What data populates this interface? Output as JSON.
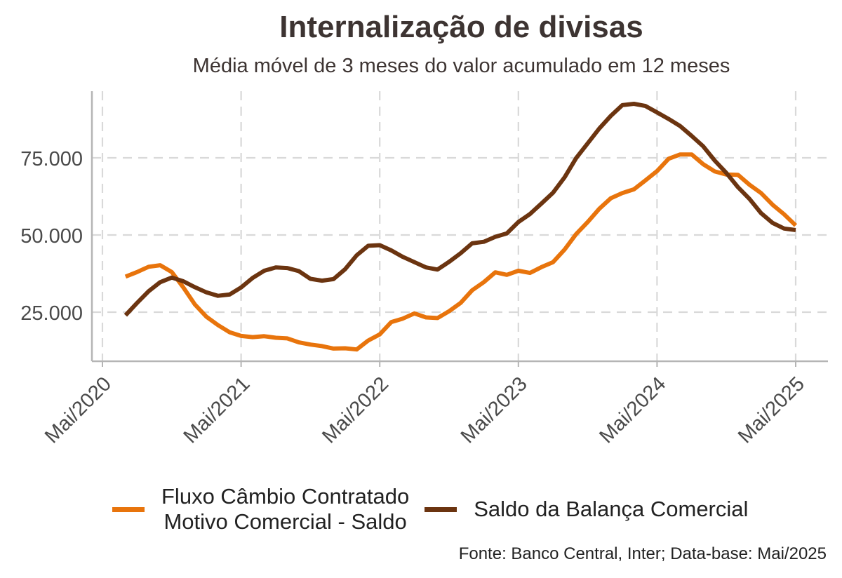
{
  "header": {
    "title": "Internalização de divisas",
    "subtitle": "Média móvel de 3 meses do valor acumulado em 12 meses"
  },
  "source": "Fonte: Banco Central, Inter; Data-base: Mai/2025",
  "legend": {
    "fluxo_line1": "Fluxo Câmbio Contratado",
    "fluxo_line2": "Motivo Comercial - Saldo",
    "saldo": "Saldo da Balança Comercial"
  },
  "colors": {
    "fluxo": "#E8740C",
    "saldo": "#6B3410",
    "grid": "#d9d9d9",
    "axis": "#b5b5b5"
  },
  "chart_data": {
    "type": "line",
    "title": "Internalização de divisas",
    "subtitle": "Média móvel de 3 meses do valor acumulado em 12 meses",
    "xlabel": "",
    "ylabel": "",
    "x_ticks": [
      "Mai/2020",
      "Mai/2021",
      "Mai/2022",
      "Mai/2023",
      "Mai/2024",
      "Mai/2025"
    ],
    "y_ticks": [
      "25.000",
      "50.000",
      "75.000"
    ],
    "y_tick_values": [
      25000,
      50000,
      75000
    ],
    "ylim": [
      9000,
      95000
    ],
    "xlim": [
      "2020-04",
      "2025-06"
    ],
    "grid": true,
    "legend_position": "bottom",
    "dates": [
      "2020-07",
      "2020-08",
      "2020-09",
      "2020-10",
      "2020-11",
      "2020-12",
      "2021-01",
      "2021-02",
      "2021-03",
      "2021-04",
      "2021-05",
      "2021-06",
      "2021-07",
      "2021-08",
      "2021-09",
      "2021-10",
      "2021-11",
      "2021-12",
      "2022-01",
      "2022-02",
      "2022-03",
      "2022-04",
      "2022-05",
      "2022-06",
      "2022-07",
      "2022-08",
      "2022-09",
      "2022-10",
      "2022-11",
      "2022-12",
      "2023-01",
      "2023-02",
      "2023-03",
      "2023-04",
      "2023-05",
      "2023-06",
      "2023-07",
      "2023-08",
      "2023-09",
      "2023-10",
      "2023-11",
      "2023-12",
      "2024-01",
      "2024-02",
      "2024-03",
      "2024-04",
      "2024-05",
      "2024-06",
      "2024-07",
      "2024-08",
      "2024-09",
      "2024-10",
      "2024-11",
      "2024-12",
      "2025-01",
      "2025-02",
      "2025-03",
      "2025-04",
      "2025-05"
    ],
    "series": [
      {
        "name": "Fluxo Câmbio Contratado Motivo Comercial - Saldo",
        "color": "#E8740C",
        "values": [
          36500,
          38000,
          39700,
          40200,
          38000,
          33000,
          27500,
          23500,
          20800,
          18500,
          17300,
          16900,
          17200,
          16700,
          16500,
          15200,
          14500,
          14000,
          13200,
          13300,
          12900,
          15800,
          17800,
          21800,
          22900,
          24600,
          23300,
          23100,
          25300,
          28000,
          32100,
          34700,
          37900,
          37100,
          38400,
          37700,
          39600,
          41200,
          45300,
          50300,
          54200,
          58500,
          61900,
          63600,
          64800,
          67700,
          70700,
          74700,
          76100,
          76100,
          72900,
          70600,
          69600,
          69500,
          66300,
          63600,
          59800,
          56700,
          53100
        ]
      },
      {
        "name": "Saldo da Balança Comercial",
        "color": "#6B3410",
        "values": [
          24000,
          28000,
          31800,
          34700,
          36200,
          35000,
          33100,
          31400,
          30300,
          30700,
          33000,
          36100,
          38400,
          39500,
          39300,
          38300,
          35800,
          35200,
          35700,
          38900,
          43400,
          46500,
          46700,
          45000,
          42900,
          41200,
          39500,
          38800,
          41300,
          44100,
          47300,
          47800,
          49400,
          50500,
          54200,
          56800,
          60200,
          63700,
          68700,
          74900,
          79700,
          84500,
          88600,
          92100,
          92500,
          91800,
          89700,
          87600,
          85300,
          82100,
          78700,
          74100,
          70100,
          65500,
          61700,
          57100,
          53900,
          52100,
          51600
        ]
      }
    ]
  }
}
